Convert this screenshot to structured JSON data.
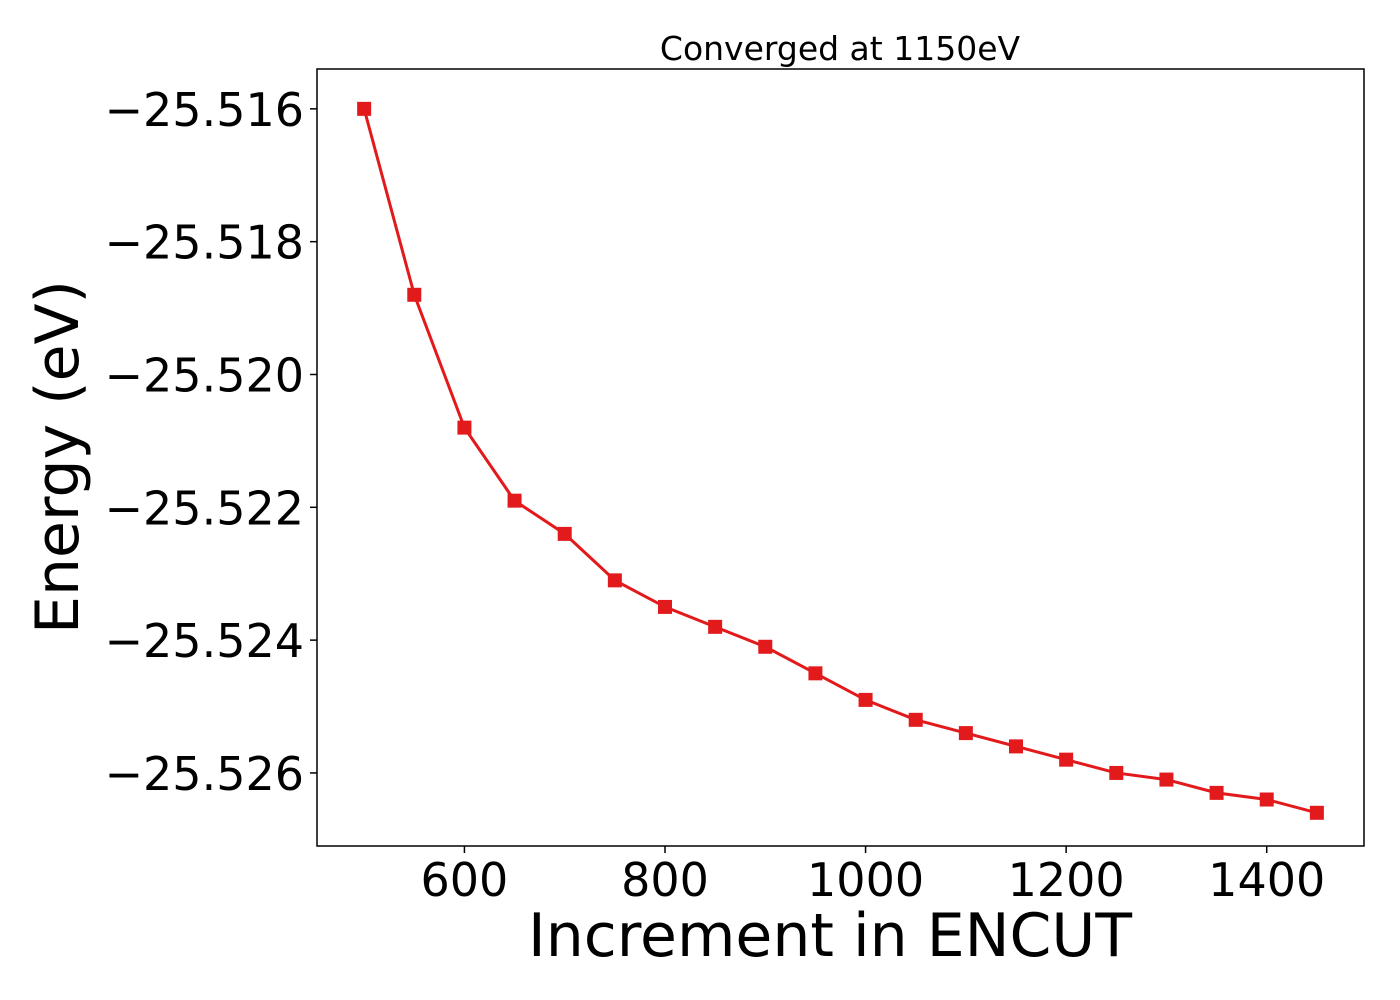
{
  "chart_data": {
    "type": "line",
    "title": "Converged at 1150eV",
    "xlabel": "Increment in ENCUT",
    "ylabel": "Energy (eV)",
    "xlim": [
      453,
      1497
    ],
    "ylim": [
      -25.5271,
      -25.5154
    ],
    "xticks": [
      600,
      800,
      1000,
      1200,
      1400
    ],
    "xtick_labels": [
      "600",
      "800",
      "1000",
      "1200",
      "1400"
    ],
    "yticks": [
      -25.516,
      -25.518,
      -25.52,
      -25.522,
      -25.524,
      -25.526
    ],
    "ytick_labels": [
      "−25.516",
      "−25.518",
      "−25.520",
      "−25.522",
      "−25.524",
      "−25.526"
    ],
    "grid": false,
    "legend": "none",
    "marker": "square",
    "color": "#e31a1c",
    "series": [
      {
        "x": [
          500,
          550,
          600,
          650,
          700,
          750,
          800,
          850,
          900,
          950,
          1000,
          1050,
          1100,
          1150,
          1200,
          1250,
          1300,
          1350,
          1400,
          1450
        ],
        "values": [
          -25.516,
          -25.5188,
          -25.5208,
          -25.5219,
          -25.5224,
          -25.5231,
          -25.5235,
          -25.5238,
          -25.5241,
          -25.5245,
          -25.5249,
          -25.5252,
          -25.5254,
          -25.5256,
          -25.5258,
          -25.526,
          -25.5261,
          -25.5263,
          -25.5264,
          -25.5266
        ]
      }
    ]
  }
}
